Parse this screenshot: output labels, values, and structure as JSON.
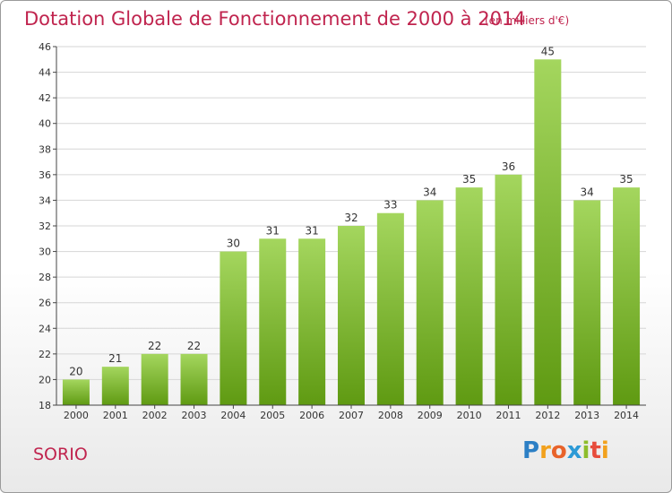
{
  "header": {
    "title": "Dotation Globale de Fonctionnement de 2000 à 2014",
    "unit_note": "(en milliers d'€)"
  },
  "footer": {
    "commune": "SORIO",
    "logo_letters": [
      "P",
      "r",
      "o",
      "x",
      "i",
      "t",
      "i"
    ]
  },
  "colors": {
    "title": "#c0244e",
    "bar_top": "#a4d65e",
    "bar_bottom": "#5f9a12",
    "grid": "#d6d6d6",
    "axis": "#444444"
  },
  "chart_data": {
    "type": "bar",
    "categories": [
      "2000",
      "2001",
      "2002",
      "2003",
      "2004",
      "2005",
      "2006",
      "2007",
      "2008",
      "2009",
      "2010",
      "2011",
      "2012",
      "2013",
      "2014"
    ],
    "values": [
      20,
      21,
      22,
      22,
      30,
      31,
      31,
      32,
      33,
      34,
      35,
      36,
      45,
      34,
      35
    ],
    "title": "Dotation Globale de Fonctionnement de 2000 à 2014",
    "xlabel": "",
    "ylabel": "",
    "ylim": [
      18,
      46
    ],
    "yticks": [
      18,
      20,
      22,
      24,
      26,
      28,
      30,
      32,
      34,
      36,
      38,
      40,
      42,
      44,
      46
    ],
    "grid": "horizontal",
    "data_labels": true
  }
}
